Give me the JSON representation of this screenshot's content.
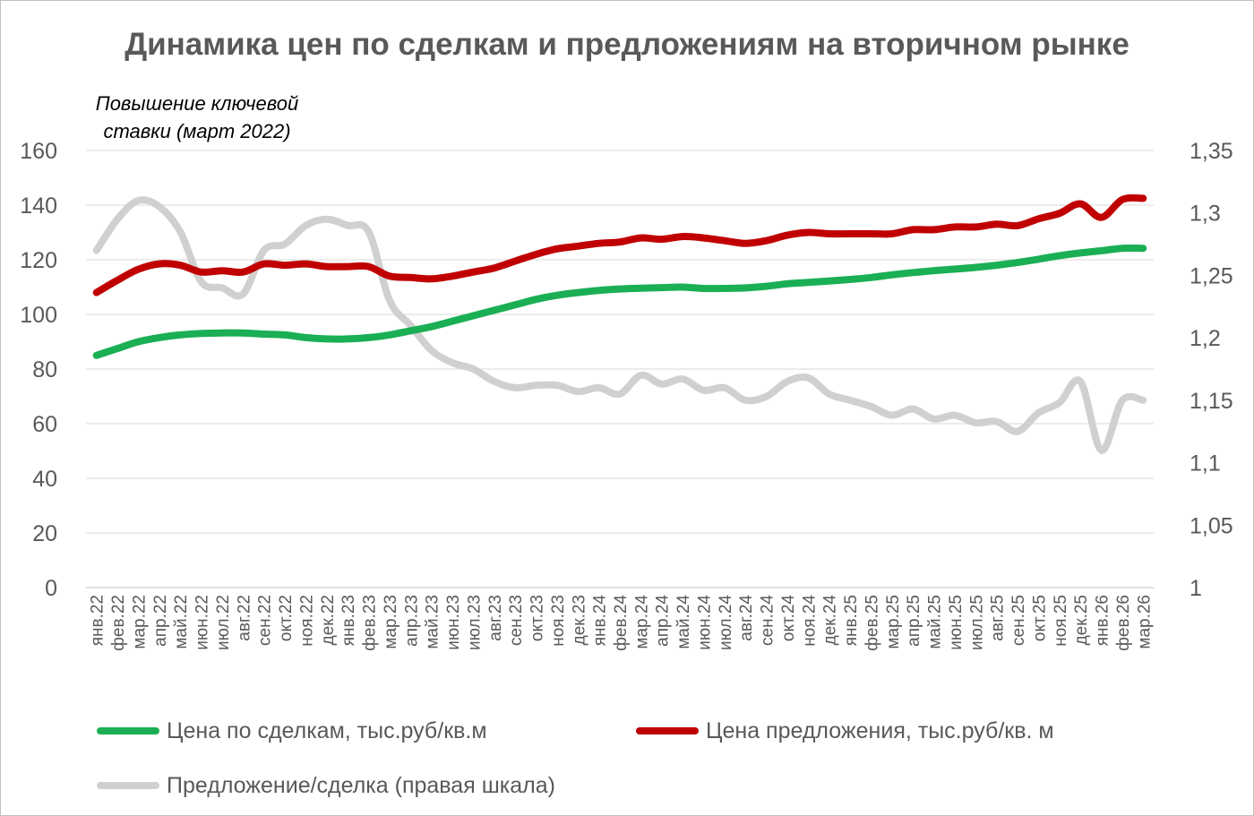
{
  "chart_data": {
    "type": "line",
    "title": "Динамика цен по сделкам и предложениям на вторичном рынке",
    "annotation": "Повышение ключевой ставки (март 2022)",
    "left_axis": {
      "min": 0,
      "max": 160,
      "step": 20,
      "ticks": [
        "0",
        "20",
        "40",
        "60",
        "80",
        "100",
        "120",
        "140",
        "160"
      ]
    },
    "right_axis": {
      "min": 1,
      "max": 1.35,
      "step": 0.05,
      "ticks": [
        "1",
        "1,05",
        "1,1",
        "1,15",
        "1,2",
        "1,25",
        "1,3",
        "1,35"
      ]
    },
    "grid": true,
    "legend_position": "bottom",
    "categories": [
      "янв.22",
      "фев.22",
      "мар.22",
      "апр.22",
      "май.22",
      "июн.22",
      "июл.22",
      "авг.22",
      "сен.22",
      "окт.22",
      "ноя.22",
      "дек.22",
      "янв.23",
      "фев.23",
      "мар.23",
      "апр.23",
      "май.23",
      "июн.23",
      "июл.23",
      "авг.23",
      "сен.23",
      "окт.23",
      "ноя.23",
      "дек.23",
      "янв.24",
      "фев.24",
      "мар.24",
      "апр.24",
      "май.24",
      "июн.24",
      "июл.24",
      "авг.24",
      "сен.24",
      "окт.24",
      "ноя.24",
      "дек.24",
      "янв.25",
      "фев.25",
      "мар.25",
      "апр.25",
      "май.25",
      "июн.25",
      "июл.25",
      "авг.25",
      "сен.25",
      "окт.25",
      "ноя.25",
      "дек.25",
      "янв.26",
      "фев.26",
      "мар.26"
    ],
    "series": [
      {
        "name": "Цена по сделкам, тыс.руб/кв.м",
        "axis": "left",
        "color": "#1aaf54",
        "values": [
          85,
          87.5,
          90,
          91.5,
          92.5,
          93,
          93.2,
          93.2,
          92.8,
          92.5,
          91.5,
          91,
          91,
          91.5,
          92.5,
          94,
          95.5,
          97.5,
          99.5,
          101.5,
          103.5,
          105.5,
          107,
          108,
          108.8,
          109.3,
          109.6,
          109.8,
          110,
          109.5,
          109.5,
          109.7,
          110.3,
          111.2,
          111.7,
          112.2,
          112.8,
          113.5,
          114.5,
          115.3,
          116,
          116.6,
          117.2,
          118,
          119,
          120.2,
          121.5,
          122.5,
          123.3,
          124.2,
          124.2
        ]
      },
      {
        "name": "Цена предложения, тыс.руб/кв. м",
        "axis": "left",
        "color": "#c00000",
        "values": [
          108,
          112.5,
          116.5,
          118.5,
          118,
          115.5,
          116,
          115.5,
          118.5,
          118,
          118.5,
          117.5,
          117.5,
          117.5,
          114,
          113.5,
          113,
          114,
          115.5,
          117,
          119.5,
          122,
          124,
          125,
          126,
          126.5,
          128,
          127.5,
          128.5,
          128,
          127,
          126,
          127,
          129,
          130,
          129.5,
          129.5,
          129.5,
          129.5,
          131,
          131,
          132,
          132,
          133,
          132.5,
          135,
          137,
          140.5,
          135.5,
          142,
          142.5
        ]
      },
      {
        "name": "Предложение/сделка (правая шкала)",
        "axis": "right",
        "color": "#d0d0d0",
        "values": [
          1.27,
          1.295,
          1.31,
          1.305,
          1.285,
          1.245,
          1.24,
          1.235,
          1.27,
          1.275,
          1.29,
          1.295,
          1.29,
          1.285,
          1.23,
          1.21,
          1.19,
          1.18,
          1.175,
          1.165,
          1.16,
          1.162,
          1.162,
          1.157,
          1.16,
          1.155,
          1.17,
          1.163,
          1.167,
          1.158,
          1.16,
          1.15,
          1.153,
          1.165,
          1.168,
          1.155,
          1.15,
          1.145,
          1.138,
          1.143,
          1.135,
          1.138,
          1.132,
          1.133,
          1.125,
          1.14,
          1.148,
          1.165,
          1.11,
          1.15,
          1.15
        ]
      }
    ]
  }
}
